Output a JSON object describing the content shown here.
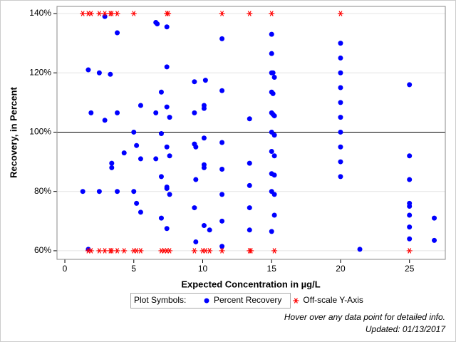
{
  "chart_data": {
    "type": "scatter",
    "x_label": "Expected Concentration in µg/L",
    "y_label": "Recovery, in Percent",
    "xlim": [
      -0.57,
      27.6
    ],
    "ylim": [
      57.1,
      142.4
    ],
    "xticks": [
      0,
      5,
      10,
      15,
      20,
      25
    ],
    "yticks": [
      {
        "value": 60,
        "label": "60%"
      },
      {
        "value": 80,
        "label": "80%"
      },
      {
        "value": 100,
        "label": "100%"
      },
      {
        "value": 120,
        "label": "120%"
      },
      {
        "value": 140,
        "label": "140%"
      }
    ],
    "grid": true,
    "refline": 100,
    "legend_title": "Plot Symbols:",
    "series": [
      {
        "name": "Percent Recovery",
        "color": "#0000ff",
        "marker": "circle",
        "x": [
          1.3,
          1.7,
          1.7,
          1.9,
          2.5,
          2.5,
          2.9,
          2.9,
          3.3,
          3.4,
          3.4,
          3.8,
          3.8,
          3.8,
          4.3,
          5.0,
          5.0,
          5.2,
          5.2,
          5.5,
          5.5,
          5.5,
          6.6,
          6.7,
          6.6,
          6.6,
          7.0,
          7.0,
          7.0,
          7.0,
          7.4,
          7.4,
          7.4,
          7.4,
          7.4,
          7.4,
          7.4,
          7.6,
          7.6,
          7.6,
          9.4,
          9.4,
          9.4,
          9.5,
          9.5,
          9.4,
          9.5,
          10.1,
          10.1,
          10.1,
          10.1,
          10.1,
          10.1,
          10.2,
          10.5,
          11.4,
          11.4,
          11.4,
          11.4,
          11.4,
          11.4,
          11.4,
          13.4,
          13.4,
          13.4,
          13.4,
          13.4,
          15,
          15,
          15,
          15,
          15,
          15,
          15,
          15,
          15,
          15,
          15.1,
          15.1,
          15.1,
          15.2,
          15.2,
          15.2,
          15.2,
          15.2,
          15.2,
          15.2,
          20,
          20,
          20,
          20,
          20,
          20,
          20,
          20,
          20,
          20,
          21.4,
          25,
          25,
          25,
          25,
          25,
          25,
          25,
          25,
          26.8,
          26.8
        ],
        "values": [
          80,
          121,
          60.5,
          106.5,
          120,
          80,
          104,
          139,
          119.5,
          89.5,
          88,
          133.5,
          106.5,
          80,
          93,
          100,
          80,
          95.5,
          76,
          109,
          91,
          73,
          137,
          136.5,
          106.5,
          91,
          113.5,
          99.5,
          85,
          71,
          135.5,
          122,
          108.5,
          95,
          81.5,
          81,
          67.5,
          105,
          92,
          79,
          117,
          106.5,
          96,
          95,
          84,
          74.5,
          63,
          109,
          108,
          98,
          89,
          88,
          68.5,
          117.5,
          67,
          131.5,
          114,
          96.5,
          87.5,
          79,
          70,
          61.5,
          104.5,
          89.5,
          82,
          74.5,
          67,
          133,
          126.5,
          120,
          113.5,
          106.5,
          100,
          93.5,
          86,
          80,
          66.5,
          120,
          113,
          106,
          118.5,
          105.5,
          99,
          92,
          85.5,
          79,
          72,
          130,
          125,
          120,
          115,
          110,
          105,
          100,
          95,
          90,
          85,
          60.5,
          116,
          92,
          84,
          76,
          75,
          72,
          68,
          64,
          71,
          63.5
        ]
      },
      {
        "name": "Off-scale Y-Axis",
        "color": "#ff0000",
        "marker": "asterisk",
        "x": [
          1.3,
          1.7,
          1.9,
          2.5,
          2.9,
          3.3,
          3.4,
          3.8,
          5,
          7.4,
          7.5,
          11.4,
          13.4,
          15,
          20,
          1.7,
          1.9,
          2.5,
          2.9,
          3.3,
          3.4,
          3.8,
          4.3,
          5,
          5.2,
          5.5,
          7,
          7.2,
          7.4,
          7.6,
          9.4,
          10,
          10.2,
          10.5,
          11.4,
          13.4,
          13.5,
          15.2,
          25
        ],
        "values": [
          140,
          140,
          140,
          140,
          140,
          140,
          140,
          140,
          140,
          140,
          140,
          140,
          140,
          140,
          140,
          60,
          60,
          60,
          60,
          60,
          60,
          60,
          60,
          60,
          60,
          60,
          60,
          60,
          60,
          60,
          60,
          60,
          60,
          60,
          60,
          60,
          60,
          60,
          60
        ]
      }
    ],
    "footnotes": [
      "Hover over any data point for detailed info.",
      "Updated: 01/13/2017"
    ]
  }
}
